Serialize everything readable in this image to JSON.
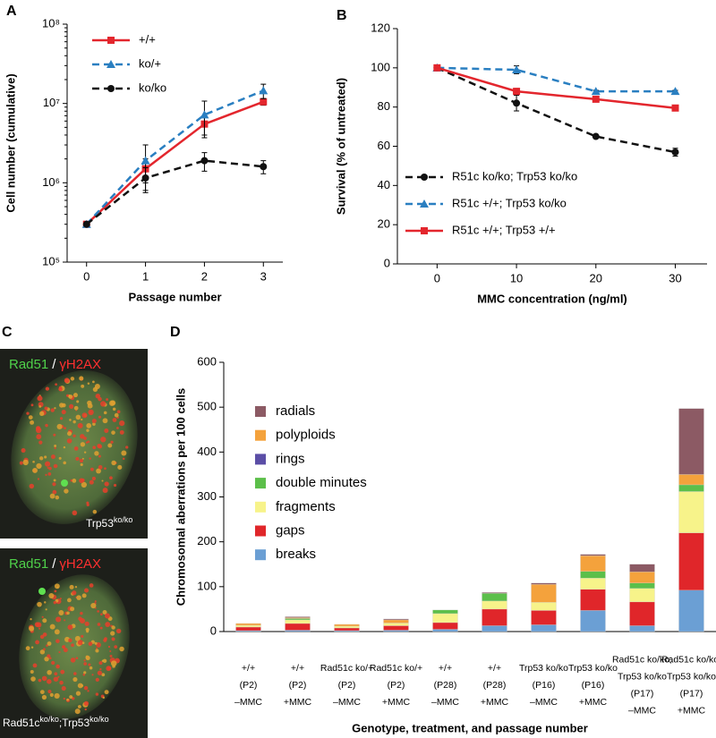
{
  "chart_data": [
    {
      "panel": "A",
      "type": "line",
      "ylabel": "Cell number (cumulative)",
      "xlabel": "Passage number",
      "x": [
        0,
        1,
        2,
        3
      ],
      "xlim": [
        -0.33,
        3.33
      ],
      "xticks": [
        0,
        1,
        2,
        3
      ],
      "ylim": [
        100000,
        100000000
      ],
      "log_y": true,
      "yticks": [
        {
          "value": 100000,
          "label": "10⁵"
        },
        {
          "value": 1000000,
          "label": "10⁶"
        },
        {
          "value": 10000000,
          "label": "10⁷"
        },
        {
          "value": 100000000,
          "label": "10⁸"
        }
      ],
      "legend": "upper left",
      "series": [
        {
          "name": "+/+",
          "color": "#e3262d",
          "style": "solid",
          "marker": "square",
          "values": [
            300000,
            1500000,
            5500000,
            10500000
          ],
          "errors": [
            0,
            500000,
            1500000,
            1000000
          ]
        },
        {
          "name": "ko/+",
          "color": "#2a7fc1",
          "style": "dashed",
          "marker": "triangle",
          "values": [
            300000,
            1900000,
            7200000,
            14500000
          ],
          "errors": [
            0,
            1100000,
            3500000,
            3000000
          ]
        },
        {
          "name": "ko/ko",
          "color": "#111111",
          "style": "dashed",
          "marker": "circle",
          "values": [
            300000,
            1150000,
            1900000,
            1600000
          ],
          "errors": [
            0,
            400000,
            500000,
            300000
          ]
        }
      ]
    },
    {
      "panel": "B",
      "type": "line",
      "ylabel": "Survival (% of untreated)",
      "xlabel": "MMC concentration (ng/ml)",
      "x": [
        0,
        10,
        20,
        30
      ],
      "xlim": [
        -5,
        34
      ],
      "xticks": [
        0,
        10,
        20,
        30
      ],
      "ylim": [
        0,
        120
      ],
      "yticks": [
        0,
        20,
        40,
        60,
        80,
        100,
        120
      ],
      "log_y": false,
      "legend": "lower left",
      "series": [
        {
          "name": "R51c ko/ko; Trp53 ko/ko",
          "color": "#111111",
          "style": "dashed",
          "marker": "circle",
          "values": [
            100,
            82,
            65,
            57
          ],
          "errors": [
            0,
            4,
            0.5,
            2
          ]
        },
        {
          "name": "R51c +/+; Trp53 ko/ko",
          "color": "#2a7fc1",
          "style": "dashed",
          "marker": "triangle",
          "values": [
            100,
            99,
            88,
            88
          ],
          "errors": [
            0,
            2,
            0.5,
            0.5
          ]
        },
        {
          "name": "R51c +/+; Trp53 +/+",
          "color": "#e3262d",
          "style": "solid",
          "marker": "square",
          "values": [
            100,
            88,
            84,
            79.5
          ],
          "errors": [
            0,
            1.5,
            1,
            1.5
          ]
        }
      ]
    },
    {
      "panel": "C",
      "type": "image",
      "images": [
        {
          "stain": [
            "Rad51",
            "/",
            "γH2AX"
          ],
          "genotype": [
            "Trp53",
            "ko/ko"
          ]
        },
        {
          "stain": [
            "Rad51",
            "/",
            "γH2AX"
          ],
          "genotype": [
            "Rad51c",
            "ko/ko",
            ";Trp53",
            "ko/ko"
          ]
        }
      ]
    },
    {
      "panel": "D",
      "type": "stacked_bar",
      "ylabel": "Chromosomal aberrations per 100 cells",
      "xlabel": "Genotype, treatment, and passage number",
      "categories": [
        [
          "+/+",
          "(P2)",
          "–MMC"
        ],
        [
          "+/+",
          "(P2)",
          "+MMC"
        ],
        [
          "Rad51c ko/+",
          "(P2)",
          "–MMC"
        ],
        [
          "Rad51c ko/+",
          "(P2)",
          "+MMC"
        ],
        [
          "+/+",
          "(P28)",
          "–MMC"
        ],
        [
          "+/+",
          "(P28)",
          "+MMC"
        ],
        [
          "Trp53 ko/ko",
          "(P16)",
          "–MMC"
        ],
        [
          "Trp53 ko/ko",
          "(P16)",
          "+MMC"
        ],
        [
          "Rad51c ko/ko;",
          "Trp53 ko/ko",
          "(P17)",
          "–MMC"
        ],
        [
          "Rad51c ko/ko;",
          "Trp53 ko/ko",
          "(P17)",
          "+MMC"
        ]
      ],
      "ylim": [
        0,
        600
      ],
      "yticks": [
        0,
        100,
        200,
        300,
        400,
        500,
        600
      ],
      "legend": "upper left",
      "series": [
        {
          "name": "breaks",
          "color": "#6b9fd4",
          "values": [
            2,
            3,
            2,
            3,
            5,
            13,
            15,
            47,
            13,
            92
          ]
        },
        {
          "name": "gaps",
          "color": "#e0262a",
          "values": [
            8,
            15,
            6,
            10,
            15,
            37,
            32,
            47,
            53,
            128
          ]
        },
        {
          "name": "fragments",
          "color": "#f7f38a",
          "values": [
            4,
            8,
            4,
            6,
            20,
            18,
            18,
            25,
            30,
            92
          ]
        },
        {
          "name": "double minutes",
          "color": "#5cbf4a",
          "values": [
            0,
            3,
            0,
            0,
            8,
            17,
            0,
            15,
            12,
            15
          ]
        },
        {
          "name": "rings",
          "color": "#5b4ea6",
          "values": [
            0,
            0,
            0,
            0,
            0,
            0,
            0,
            0,
            0,
            0
          ]
        },
        {
          "name": "polyploids",
          "color": "#f4a23c",
          "values": [
            4,
            2,
            4,
            7,
            0,
            0,
            40,
            35,
            25,
            23
          ]
        },
        {
          "name": "radials",
          "color": "#8c5a64",
          "values": [
            0,
            2,
            0,
            2,
            0,
            2,
            3,
            3,
            17,
            147
          ]
        }
      ]
    }
  ]
}
